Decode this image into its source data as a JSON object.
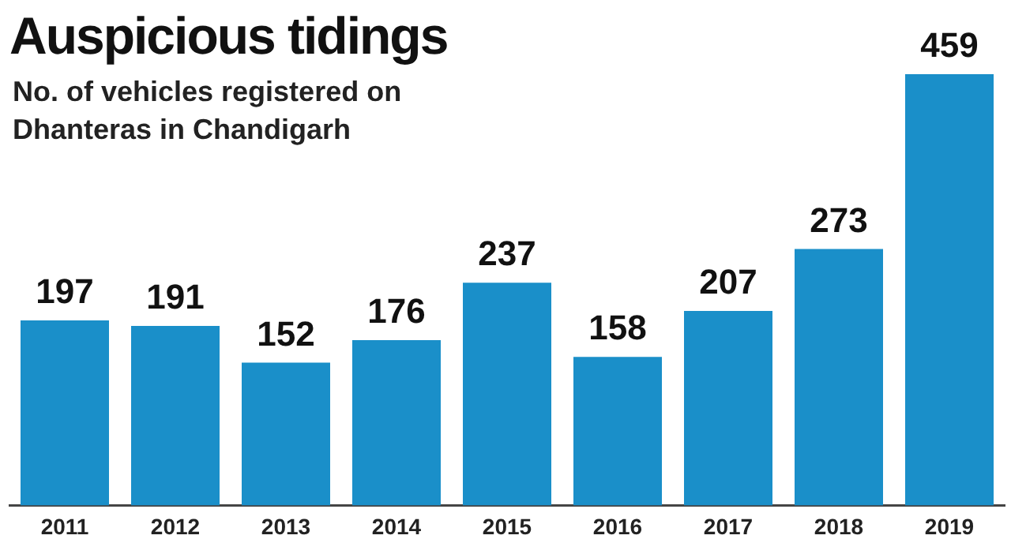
{
  "chart_data": {
    "type": "bar",
    "title": "Auspicious tidings",
    "subtitle": "No. of vehicles registered on Dhanteras in Chandigarh",
    "categories": [
      "2011",
      "2012",
      "2013",
      "2014",
      "2015",
      "2016",
      "2017",
      "2018",
      "2019"
    ],
    "values": [
      197,
      191,
      152,
      176,
      237,
      158,
      207,
      273,
      459
    ],
    "color": "#1a8fc9",
    "data_labels": true,
    "grid": false
  }
}
